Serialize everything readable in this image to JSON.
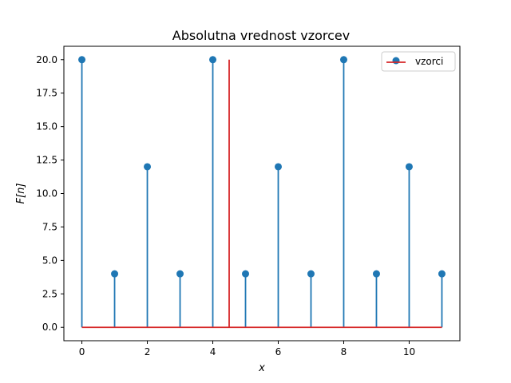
{
  "chart_data": {
    "type": "scatter",
    "title": "Absolutna vrednost vzorcev",
    "xlabel": "x",
    "ylabel": "F[n]",
    "xlim": [
      -0.55,
      11.55
    ],
    "ylim": [
      -1.0,
      21.0
    ],
    "x_ticks": [
      0,
      2,
      4,
      6,
      8,
      10
    ],
    "y_ticks": [
      0.0,
      2.5,
      5.0,
      7.5,
      10.0,
      12.5,
      15.0,
      17.5,
      20.0
    ],
    "x_tick_labels": [
      "0",
      "2",
      "4",
      "6",
      "8",
      "10"
    ],
    "y_tick_labels": [
      "0.0",
      "2.5",
      "5.0",
      "7.5",
      "10.0",
      "12.5",
      "15.0",
      "17.5",
      "20.0"
    ],
    "series": [
      {
        "name": "vzorci",
        "style": "stem",
        "color": "#1f77b4",
        "x": [
          0,
          1,
          2,
          3,
          4,
          5,
          6,
          7,
          8,
          9,
          10,
          11
        ],
        "y": [
          20,
          4,
          12,
          4,
          20,
          4,
          12,
          4,
          20,
          4,
          12,
          4
        ]
      }
    ],
    "baseline": {
      "y": 0,
      "x_from": 0,
      "x_to": 11,
      "color": "#d62728"
    },
    "vertical_line": {
      "x": 4.5,
      "y_from": 0,
      "y_to": 20,
      "color": "#d62728"
    },
    "legend": {
      "placement": "top-right",
      "entries": [
        {
          "label": "vzorci",
          "marker": "circle",
          "color": "#1f77b4"
        },
        {
          "label": "vzorci",
          "marker": "line",
          "color": "#d62728"
        }
      ]
    },
    "grid": false
  }
}
